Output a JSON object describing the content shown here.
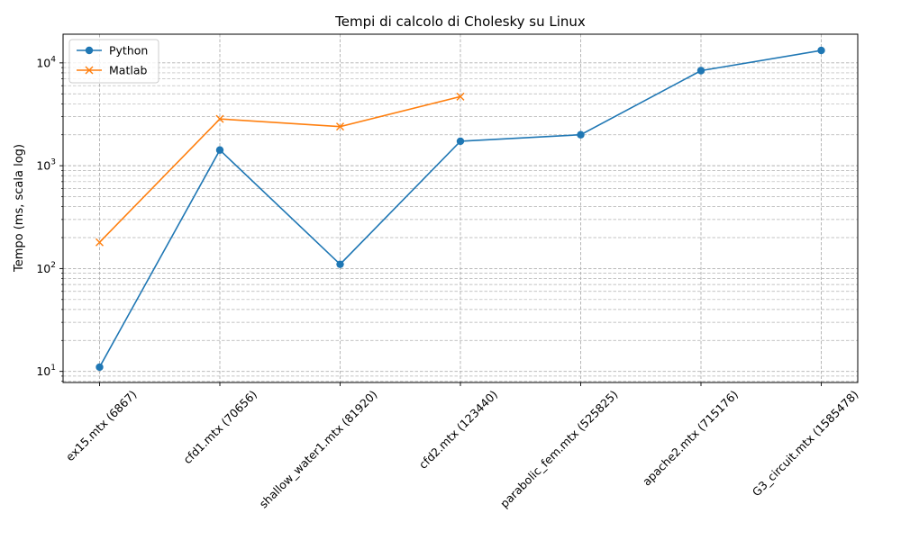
{
  "chart_data": {
    "type": "line",
    "title": "Tempi di calcolo di Cholesky su Linux",
    "xlabel": "",
    "ylabel": "Tempo (ms, scala log)",
    "yscale": "log",
    "ylim": [
      7.8,
      19000
    ],
    "y_ticks": [
      {
        "value": 10,
        "base": "10",
        "exp": "1"
      },
      {
        "value": 100,
        "base": "10",
        "exp": "2"
      },
      {
        "value": 1000,
        "base": "10",
        "exp": "3"
      },
      {
        "value": 10000,
        "base": "10",
        "exp": "4"
      }
    ],
    "grid": true,
    "legend_position": "top-left",
    "categories": [
      "ex15.mtx (6867)",
      "cfd1.mtx (70656)",
      "shallow_water1.mtx (81920)",
      "cfd2.mtx (123440)",
      "parabolic_fem.mtx (525825)",
      "apache2.mtx (715176)",
      "G3_circuit.mtx (1585478)"
    ],
    "series": [
      {
        "name": "Python",
        "color": "#1f77b4",
        "marker": "circle",
        "values": [
          11,
          1420,
          110,
          1730,
          2000,
          8400,
          13200
        ]
      },
      {
        "name": "Matlab",
        "color": "#ff7f0e",
        "marker": "x",
        "values": [
          180,
          2850,
          2400,
          4700,
          null,
          null,
          null
        ]
      }
    ]
  }
}
